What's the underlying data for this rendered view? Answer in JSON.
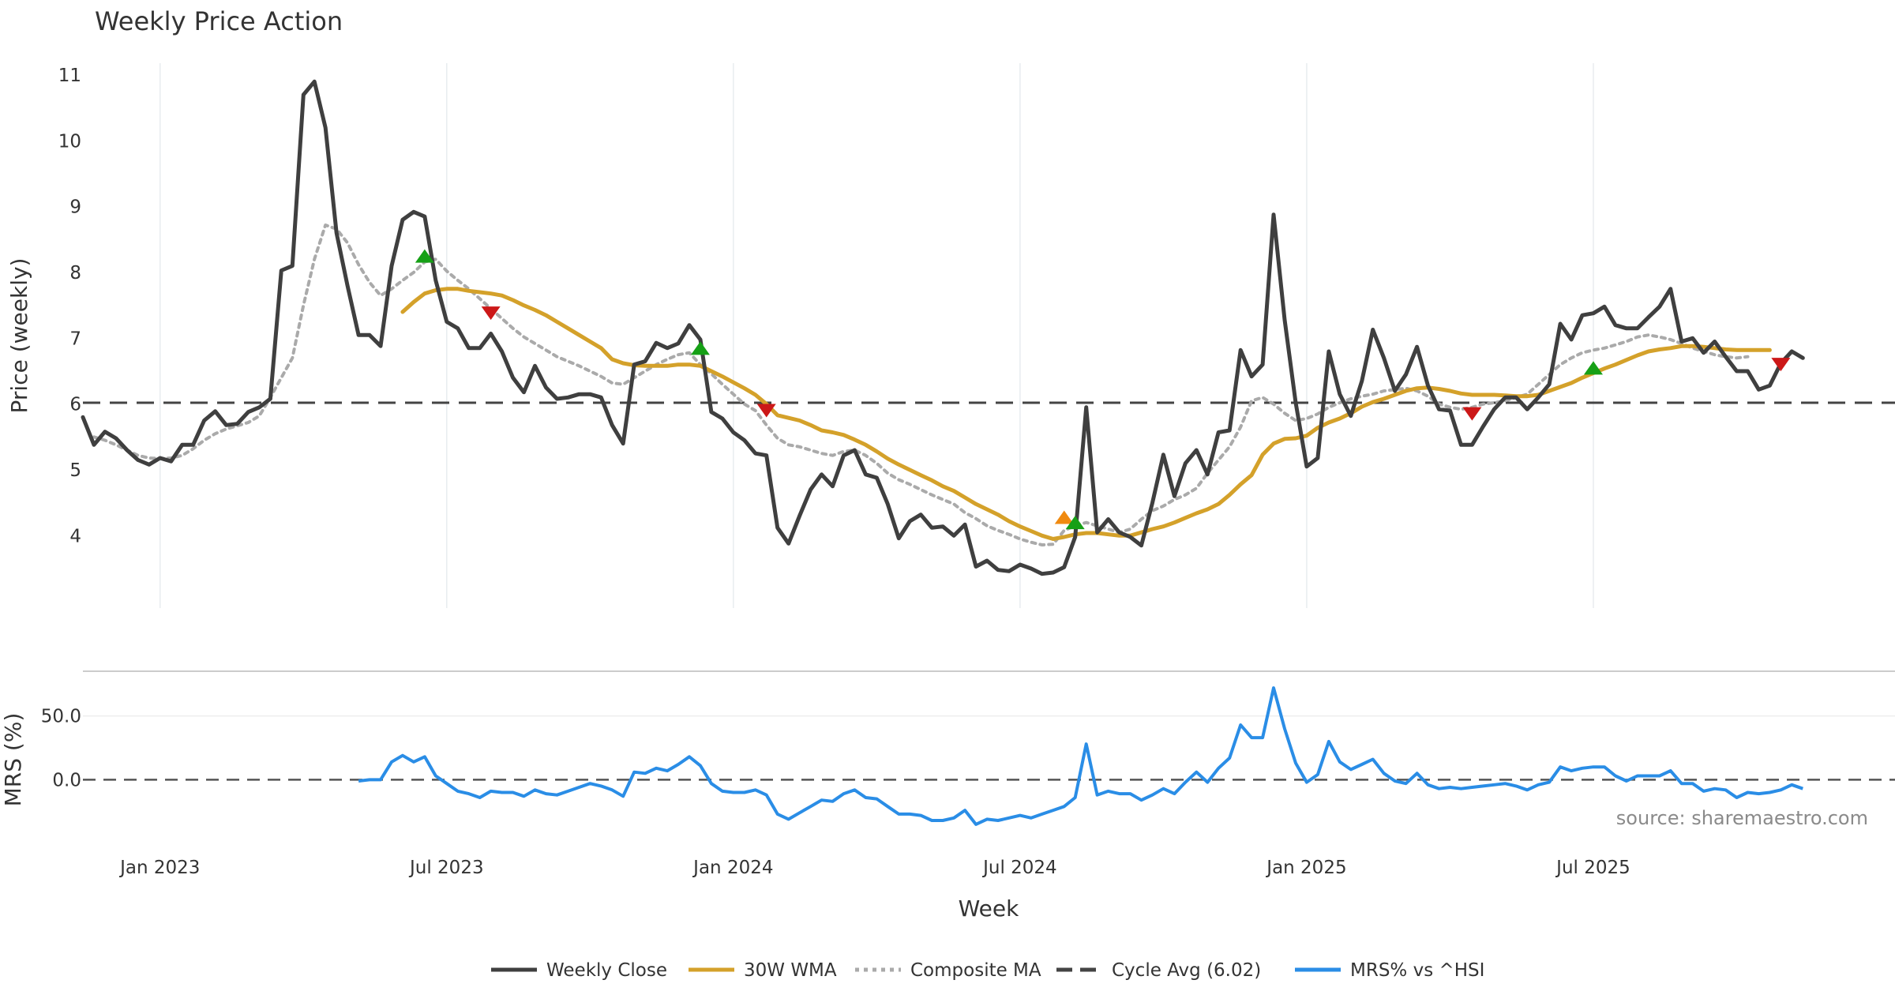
{
  "chart_data": {
    "type": "line",
    "title": "Weekly Price Action",
    "xlabel": "Week",
    "source": "source: sharemaestro.com",
    "x_ticks": [
      {
        "label": "Jan 2023",
        "t": 0
      },
      {
        "label": "Jul 2023",
        "t": 26
      },
      {
        "label": "Jan 2024",
        "t": 52
      },
      {
        "label": "Jul 2024",
        "t": 78
      },
      {
        "label": "Jan 2025",
        "t": 104
      },
      {
        "label": "Jul 2025",
        "t": 130
      }
    ],
    "x_range": [
      -7,
      157
    ],
    "price_panel": {
      "ylabel": "Price (weekly)",
      "ylim": [
        2.9,
        11.3
      ],
      "yticks": [
        4,
        5,
        6,
        7,
        8,
        9,
        10,
        11
      ],
      "series": [
        {
          "name": "Weekly Close",
          "color": "#3f3f3f",
          "style": "solid",
          "start": -7,
          "values": [
            5.8,
            5.38,
            5.58,
            5.48,
            5.3,
            5.15,
            5.08,
            5.18,
            5.13,
            5.38,
            5.38,
            5.75,
            5.89,
            5.68,
            5.7,
            5.88,
            5.95,
            6.08,
            8.03,
            8.1,
            10.7,
            10.9,
            10.2,
            8.6,
            7.8,
            7.05,
            7.05,
            6.88,
            8.1,
            8.8,
            8.92,
            8.85,
            7.88,
            7.25,
            7.15,
            6.85,
            6.85,
            7.07,
            6.8,
            6.4,
            6.18,
            6.58,
            6.25,
            6.08,
            6.1,
            6.15,
            6.15,
            6.1,
            5.68,
            5.4,
            6.6,
            6.65,
            6.93,
            6.85,
            6.92,
            7.2,
            6.98,
            5.88,
            5.78,
            5.57,
            5.45,
            5.25,
            5.22,
            4.12,
            3.88,
            4.3,
            4.7,
            4.93,
            4.75,
            5.22,
            5.3,
            4.93,
            4.88,
            4.48,
            3.96,
            4.22,
            4.32,
            4.12,
            4.14,
            4.0,
            4.17,
            3.53,
            3.62,
            3.48,
            3.46,
            3.56,
            3.5,
            3.42,
            3.44,
            3.52,
            3.98,
            5.95,
            4.05,
            4.25,
            4.05,
            3.98,
            3.85,
            4.5,
            5.23,
            4.6,
            5.1,
            5.3,
            4.93,
            5.57,
            5.6,
            6.82,
            6.42,
            6.6,
            8.88,
            7.28,
            6.02,
            5.05,
            5.18,
            6.8,
            6.15,
            5.82,
            6.35,
            7.13,
            6.7,
            6.2,
            6.45,
            6.87,
            6.28,
            5.92,
            5.9,
            5.38,
            5.38,
            5.66,
            5.92,
            6.1,
            6.1,
            5.92,
            6.1,
            6.3,
            7.22,
            6.98,
            7.35,
            7.38,
            7.48,
            7.2,
            7.15,
            7.15,
            7.32,
            7.48,
            7.75,
            6.95,
            7.0,
            6.78,
            6.95,
            6.72,
            6.5,
            6.5,
            6.22,
            6.28,
            6.62,
            6.8,
            6.7
          ]
        },
        {
          "name": "30W WMA",
          "color": "#d4a12a",
          "style": "solid",
          "start": 22,
          "values": [
            7.4,
            7.55,
            7.68,
            7.73,
            7.75,
            7.75,
            7.72,
            7.7,
            7.68,
            7.65,
            7.58,
            7.5,
            7.43,
            7.35,
            7.25,
            7.15,
            7.05,
            6.95,
            6.85,
            6.68,
            6.62,
            6.59,
            6.58,
            6.58,
            6.58,
            6.6,
            6.6,
            6.58,
            6.5,
            6.42,
            6.33,
            6.24,
            6.14,
            6.0,
            5.83,
            5.79,
            5.75,
            5.68,
            5.6,
            5.57,
            5.53,
            5.46,
            5.38,
            5.28,
            5.17,
            5.08,
            5.0,
            4.92,
            4.84,
            4.75,
            4.68,
            4.58,
            4.48,
            4.4,
            4.32,
            4.22,
            4.14,
            4.07,
            4.0,
            3.95,
            3.98,
            4.02,
            4.04,
            4.04,
            4.02,
            4.0,
            4.0,
            4.05,
            4.1,
            4.14,
            4.2,
            4.27,
            4.34,
            4.4,
            4.48,
            4.62,
            4.78,
            4.92,
            5.23,
            5.4,
            5.47,
            5.48,
            5.52,
            5.64,
            5.72,
            5.78,
            5.86,
            5.96,
            6.03,
            6.08,
            6.14,
            6.2,
            6.24,
            6.25,
            6.23,
            6.2,
            6.16,
            6.14,
            6.14,
            6.14,
            6.13,
            6.12,
            6.12,
            6.14,
            6.2,
            6.26,
            6.32,
            6.4,
            6.47,
            6.54,
            6.6,
            6.67,
            6.74,
            6.8,
            6.83,
            6.85,
            6.88,
            6.88,
            6.87,
            6.85,
            6.83,
            6.82,
            6.82,
            6.82,
            6.82
          ]
        },
        {
          "name": "Composite MA",
          "color": "#aaaaaa",
          "style": "dotted",
          "start": -6,
          "values": [
            5.5,
            5.45,
            5.38,
            5.3,
            5.22,
            5.18,
            5.17,
            5.18,
            5.22,
            5.32,
            5.45,
            5.55,
            5.62,
            5.67,
            5.72,
            5.82,
            6.1,
            6.4,
            6.7,
            7.5,
            8.2,
            8.72,
            8.66,
            8.45,
            8.12,
            7.85,
            7.65,
            7.75,
            7.88,
            8.0,
            8.16,
            8.2,
            8.02,
            7.88,
            7.75,
            7.6,
            7.45,
            7.3,
            7.15,
            7.02,
            6.92,
            6.82,
            6.72,
            6.65,
            6.58,
            6.5,
            6.42,
            6.32,
            6.3,
            6.4,
            6.5,
            6.6,
            6.68,
            6.75,
            6.78,
            6.6,
            6.46,
            6.3,
            6.15,
            6.0,
            5.9,
            5.68,
            5.48,
            5.38,
            5.35,
            5.3,
            5.25,
            5.22,
            5.28,
            5.3,
            5.22,
            5.1,
            4.95,
            4.85,
            4.78,
            4.7,
            4.62,
            4.55,
            4.48,
            4.35,
            4.26,
            4.15,
            4.08,
            4.02,
            3.95,
            3.9,
            3.86,
            3.87,
            4.08,
            4.15,
            4.2,
            4.15,
            4.1,
            4.05,
            4.1,
            4.25,
            4.38,
            4.45,
            4.55,
            4.62,
            4.72,
            4.95,
            5.15,
            5.35,
            5.65,
            6.05,
            6.1,
            6.0,
            5.86,
            5.75,
            5.78,
            5.85,
            5.95,
            6.02,
            6.08,
            6.12,
            6.15,
            6.2,
            6.22,
            6.24,
            6.2,
            6.12,
            6.0,
            5.95,
            5.92,
            5.95,
            6.0,
            6.02,
            6.05,
            6.1,
            6.15,
            6.3,
            6.45,
            6.6,
            6.7,
            6.78,
            6.82,
            6.85,
            6.9,
            6.95,
            7.02,
            7.05,
            7.02,
            6.98,
            6.92,
            6.85,
            6.8,
            6.75,
            6.72,
            6.7,
            6.72
          ]
        }
      ],
      "reference_line": {
        "name": "Cycle Avg (6.02)",
        "value": 6.02,
        "color": "#444444"
      },
      "markers": [
        {
          "t": 24,
          "y": 8.25,
          "shape": "triangle-up",
          "color": "#16a016"
        },
        {
          "t": 30,
          "y": 7.38,
          "shape": "triangle-down",
          "color": "#cc1818"
        },
        {
          "t": 49,
          "y": 6.85,
          "shape": "triangle-up",
          "color": "#16a016"
        },
        {
          "t": 55,
          "y": 5.9,
          "shape": "triangle-down",
          "color": "#cc1818"
        },
        {
          "t": 82,
          "y": 4.28,
          "shape": "triangle-up",
          "color": "#f08a10"
        },
        {
          "t": 83,
          "y": 4.2,
          "shape": "triangle-up",
          "color": "#16a016"
        },
        {
          "t": 119,
          "y": 5.85,
          "shape": "triangle-down",
          "color": "#cc1818"
        },
        {
          "t": 130,
          "y": 6.55,
          "shape": "triangle-up",
          "color": "#16a016"
        },
        {
          "t": 147,
          "y": 6.6,
          "shape": "triangle-down",
          "color": "#cc1818"
        }
      ]
    },
    "mrs_panel": {
      "ylabel": "MRS (%)",
      "ylim": [
        -45,
        82
      ],
      "yticks": [
        {
          "v": 50,
          "label": "50.0"
        },
        {
          "v": 0,
          "label": "0.0"
        }
      ],
      "series": {
        "name": "MRS% vs ^HSI",
        "color": "#2a8de6",
        "start": 18,
        "values": [
          -1,
          0,
          0,
          14,
          19,
          14,
          18,
          3,
          -3,
          -9,
          -11,
          -14,
          -9,
          -10,
          -10,
          -13,
          -8,
          -11,
          -12,
          -9,
          -6,
          -3,
          -5,
          -8,
          -13,
          6,
          5,
          9,
          7,
          12,
          18,
          11,
          -3,
          -9,
          -10,
          -10,
          -8,
          -12,
          -27,
          -31,
          -26,
          -21,
          -16,
          -17,
          -11,
          -8,
          -14,
          -15,
          -21,
          -27,
          -27,
          -28,
          -32,
          -32,
          -30,
          -24,
          -35,
          -31,
          -32,
          -30,
          -28,
          -30,
          -27,
          -24,
          -21,
          -14,
          28,
          -12,
          -9,
          -11,
          -11,
          -16,
          -12,
          -7,
          -11,
          -2,
          6,
          -2,
          9,
          17,
          43,
          33,
          33,
          72,
          40,
          13,
          -2,
          4,
          30,
          14,
          8,
          12,
          16,
          5,
          -1,
          -3,
          5,
          -4,
          -7,
          -6,
          -7,
          -6,
          -5,
          -4,
          -3,
          -5,
          -8,
          -4,
          -2,
          10,
          7,
          9,
          10,
          10,
          3,
          -1,
          3,
          3,
          3,
          7,
          -3,
          -3,
          -9,
          -7,
          -8,
          -14,
          -10,
          -11,
          -10,
          -8,
          -4,
          -7
        ]
      }
    },
    "legend": [
      {
        "label": "Weekly Close",
        "color": "#3f3f3f",
        "style": "solid"
      },
      {
        "label": "30W WMA",
        "color": "#d4a12a",
        "style": "solid"
      },
      {
        "label": "Composite MA",
        "color": "#aaaaaa",
        "style": "dotted"
      },
      {
        "label": "Cycle Avg (6.02)",
        "color": "#444444",
        "style": "dashed"
      },
      {
        "label": "MRS% vs ^HSI",
        "color": "#2a8de6",
        "style": "solid"
      }
    ]
  }
}
